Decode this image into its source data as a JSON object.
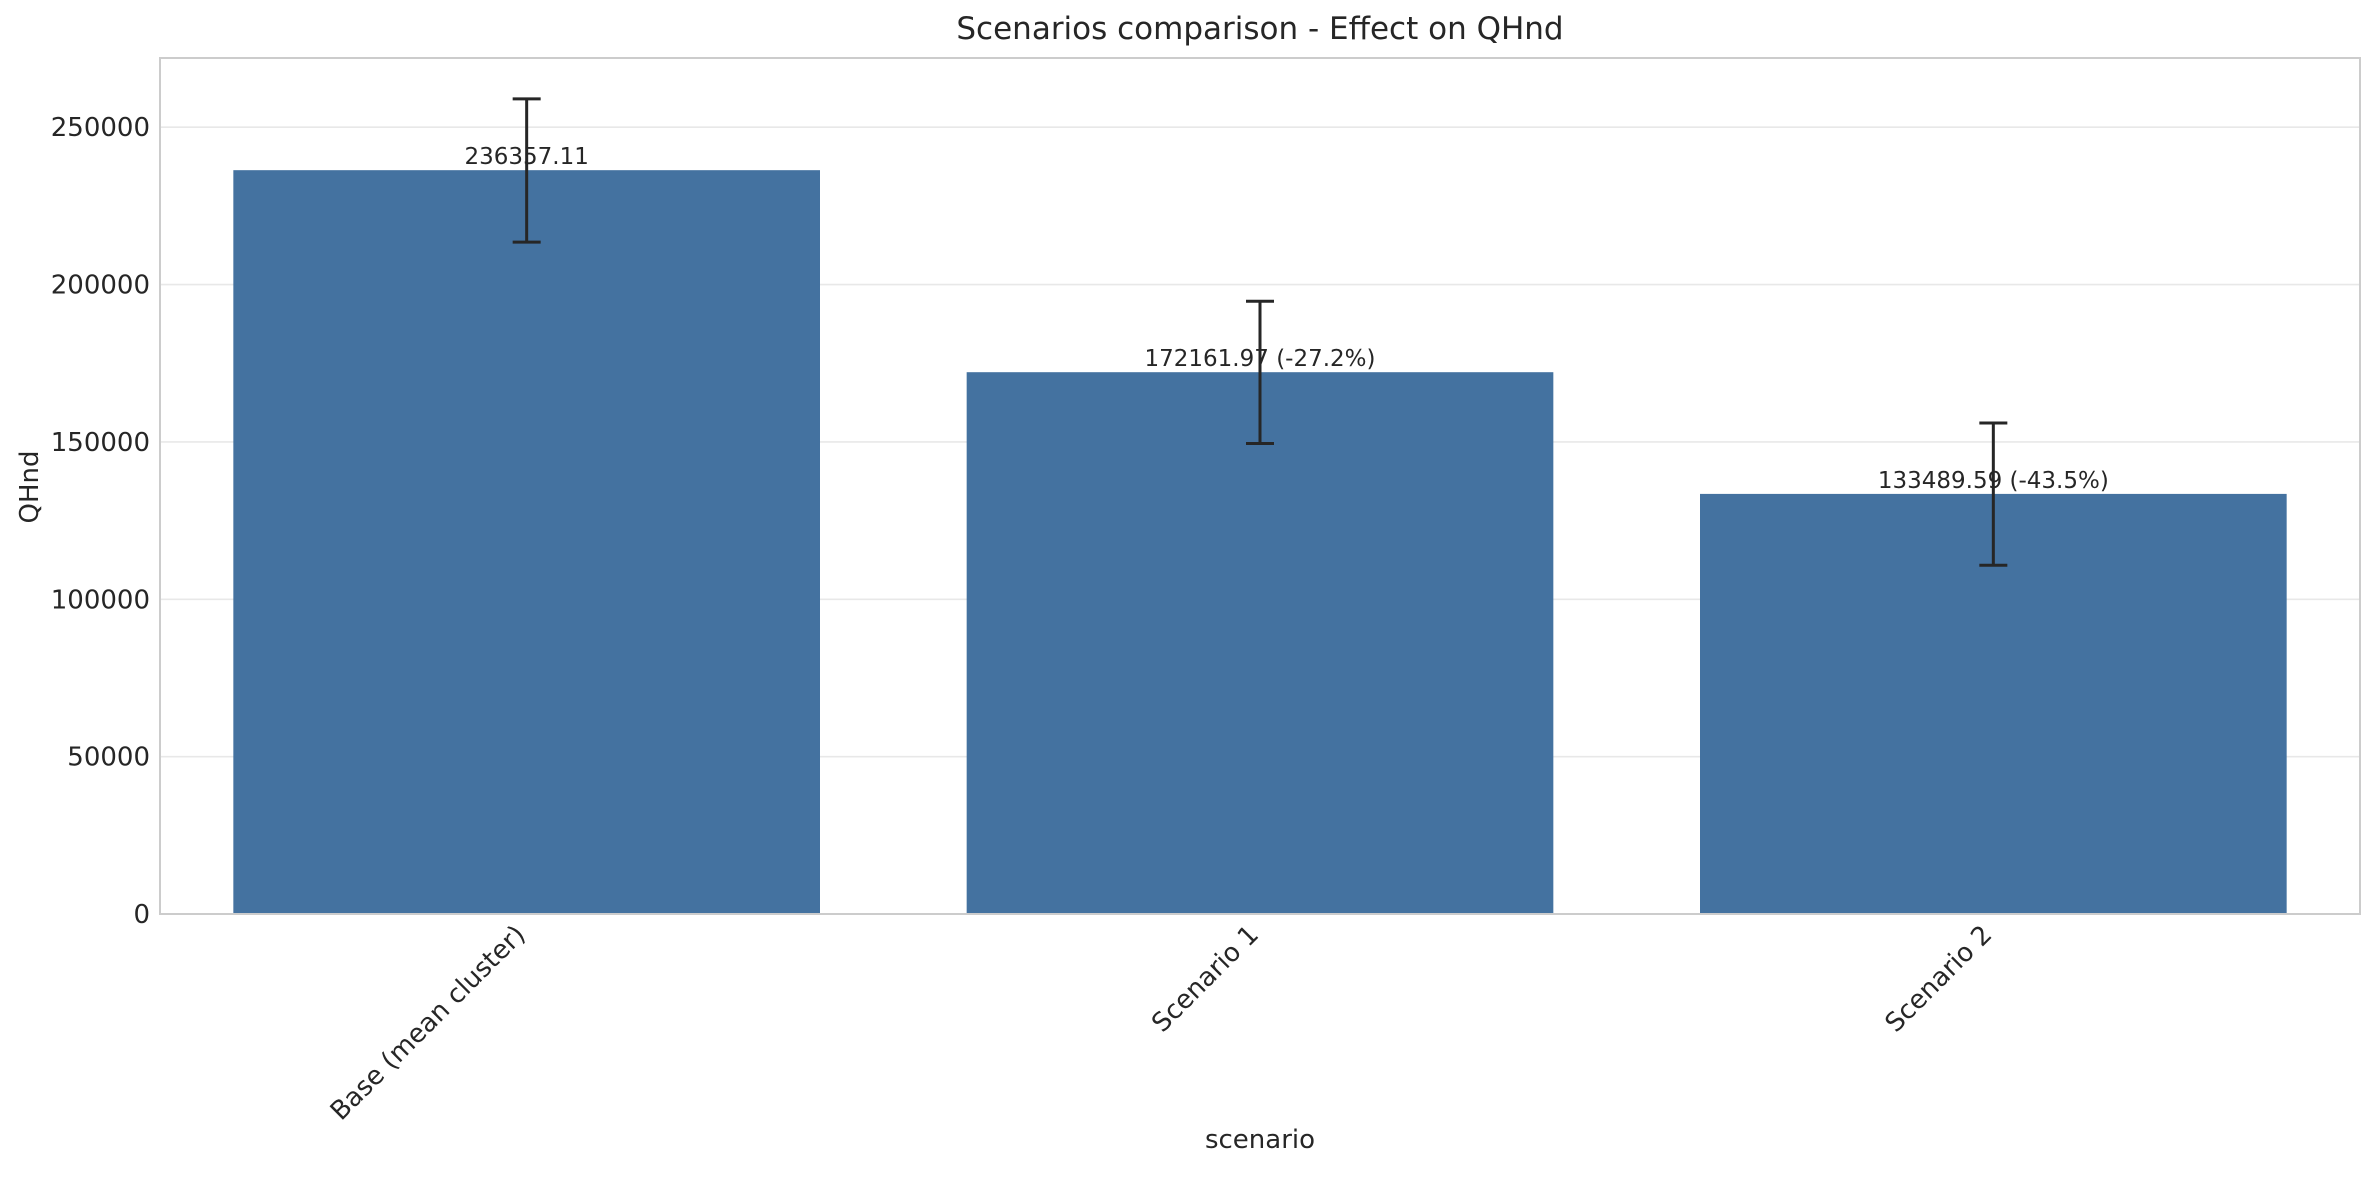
{
  "chart_data": {
    "type": "bar",
    "title": "Scenarios comparison - Effect on QHnd",
    "xlabel": "scenario",
    "ylabel": "QHnd",
    "categories": [
      "Base (mean cluster)",
      "Scenario 1",
      "Scenario 2"
    ],
    "values": [
      236357.11,
      172161.97,
      133489.59
    ],
    "error_low": [
      213500,
      149500,
      110800
    ],
    "error_high": [
      259000,
      194700,
      156000
    ],
    "data_labels": [
      "236357.11",
      "172161.97 (-27.2%)",
      "133489.59 (-43.5%)"
    ],
    "ylim": [
      0,
      272000
    ],
    "yticks": [
      0,
      50000,
      100000,
      150000,
      200000,
      250000
    ],
    "ytick_labels": [
      "0",
      "50000",
      "100000",
      "150000",
      "200000",
      "250000"
    ],
    "grid": "horizontal",
    "bar_color": "#4472a0",
    "error_color": "#262626",
    "grid_color": "#e8e8e8",
    "frame_color": "#cccccc"
  }
}
